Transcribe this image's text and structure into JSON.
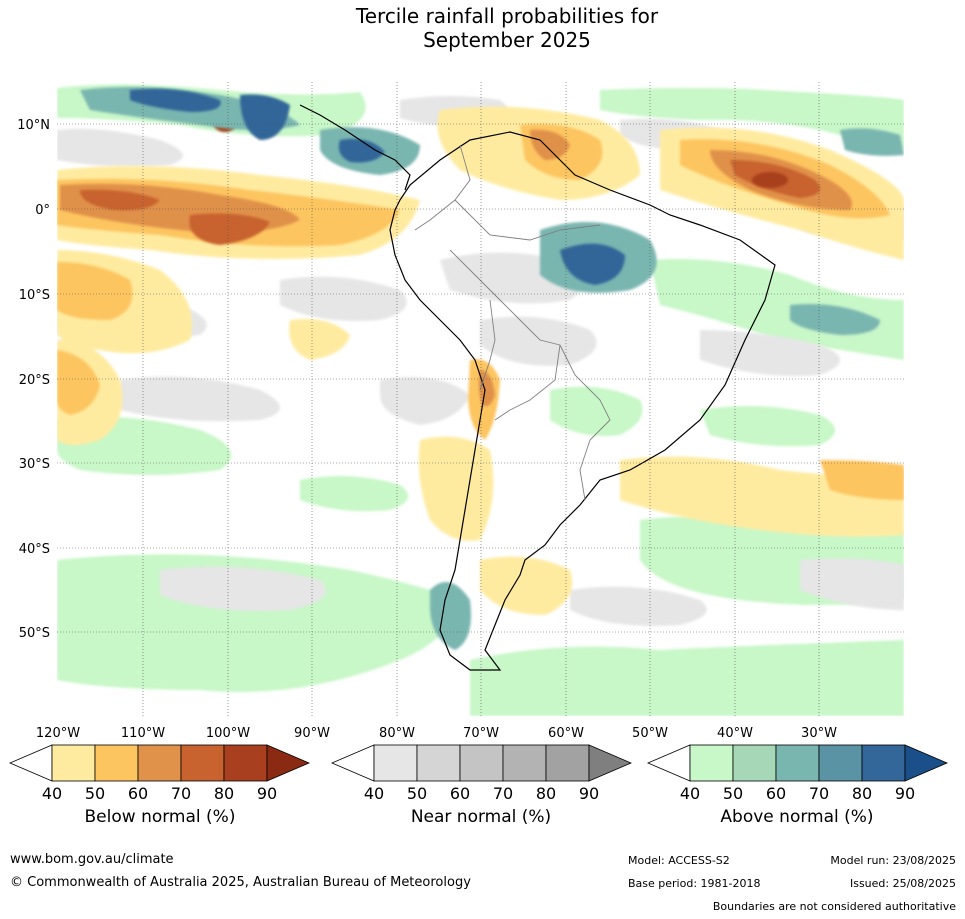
{
  "title_line1": "Tercile rainfall probabilities for",
  "title_line2": "September 2025",
  "lat_labels": [
    "10°N",
    "0°",
    "10°S",
    "20°S",
    "30°S",
    "40°S",
    "50°S"
  ],
  "lon_labels": [
    "120°W",
    "110°W",
    "100°W",
    "90°W",
    "80°W",
    "70°W",
    "60°W",
    "50°W",
    "40°W",
    "30°W"
  ],
  "legends": {
    "below": {
      "title": "Below normal (%)",
      "ticks": [
        "40",
        "50",
        "60",
        "70",
        "80",
        "90"
      ],
      "colors": [
        "#ffffff",
        "#ffeba0",
        "#fdc560",
        "#e0914a",
        "#c8622f",
        "#a8401f",
        "#8b2a12"
      ]
    },
    "near": {
      "title": "Near normal (%)",
      "ticks": [
        "40",
        "50",
        "60",
        "70",
        "80",
        "90"
      ],
      "colors": [
        "#ffffff",
        "#e6e6e6",
        "#d5d5d5",
        "#c4c4c4",
        "#b3b3b3",
        "#a2a2a2",
        "#7f7f7f"
      ]
    },
    "above": {
      "title": "Above normal (%)",
      "ticks": [
        "40",
        "50",
        "60",
        "70",
        "80",
        "90"
      ],
      "colors": [
        "#ffffff",
        "#c8f7c8",
        "#a6d8b8",
        "#7ab6b0",
        "#5a93a3",
        "#336699",
        "#1a4f8a"
      ]
    }
  },
  "footer": {
    "url": "www.bom.gov.au/climate",
    "copyright": "© Commonwealth of Australia 2025, Australian Bureau of Meteorology",
    "model": "Model: ACCESS-S2",
    "model_run": "Model run: 23/08/2025",
    "base_period": "Base period: 1981-2018",
    "issued": "Issued: 25/08/2025",
    "disclaimer": "Boundaries are not considered authoritative"
  }
}
